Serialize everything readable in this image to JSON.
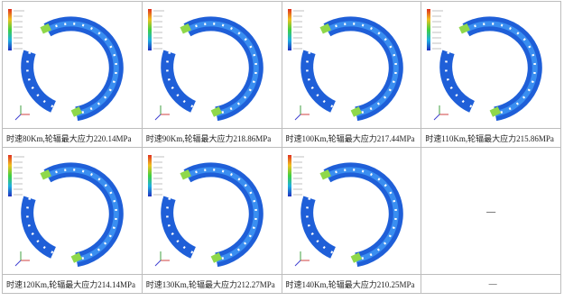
{
  "table": {
    "cells": [
      {
        "caption": "时速80Km,轮辐最大应力220.14MPa"
      },
      {
        "caption": "时速90Km,轮辐最大应力218.86MPa"
      },
      {
        "caption": "时速100Km,轮辐最大应力217.44MPa"
      },
      {
        "caption": "时速110Km,轮辐最大应力215.86MPa"
      },
      {
        "caption": "时速120Km,轮辐最大应力214.14MPa"
      },
      {
        "caption": "时速130Km,轮辐最大应力212.27MPa"
      },
      {
        "caption": "时速140Km,轮辐最大应力210.25MPa"
      },
      {
        "text": "—",
        "caption": "—"
      }
    ]
  }
}
